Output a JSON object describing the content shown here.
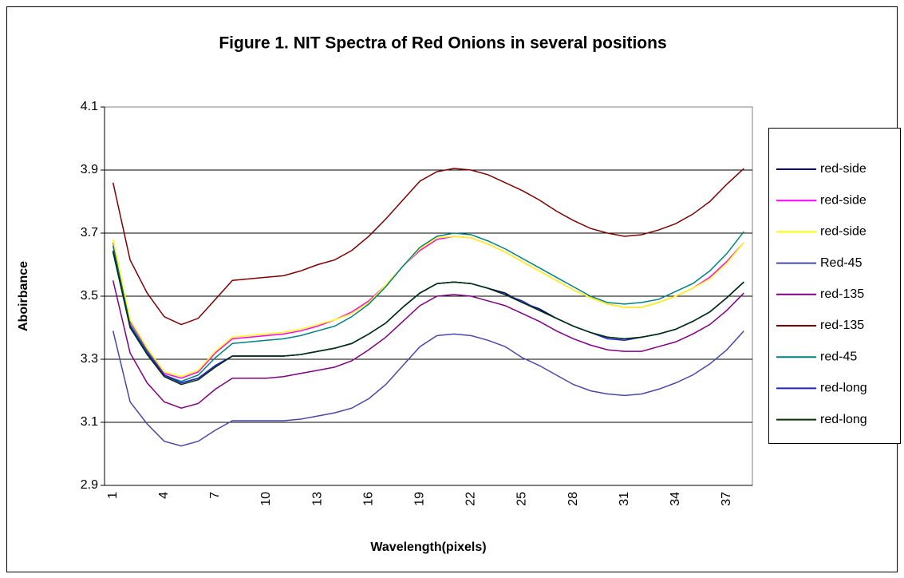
{
  "chart_data": {
    "type": "line",
    "title": "Figure 1. NIT Spectra of Red Onions in several positions",
    "xlabel": "Wavelength(pixels)",
    "ylabel": "Aboirbance",
    "categories": [
      1,
      null,
      null,
      4,
      null,
      null,
      7,
      null,
      null,
      10,
      null,
      null,
      13,
      null,
      null,
      16,
      null,
      null,
      19,
      null,
      null,
      22,
      null,
      null,
      25,
      null,
      null,
      28,
      null,
      null,
      31,
      null,
      null,
      34,
      null,
      null,
      37,
      null
    ],
    "ylim": [
      2.9,
      4.1
    ],
    "yticks": [
      {
        "value": 2.9,
        "label": "2.9"
      },
      {
        "value": 3.1,
        "label": "3.1"
      },
      {
        "value": 3.3,
        "label": "3.3"
      },
      {
        "value": 3.5,
        "label": "3.5"
      },
      {
        "value": 3.7,
        "label": "3.7"
      },
      {
        "value": 3.9,
        "label": "3.9"
      },
      {
        "value": 4.1,
        "label": "4.1"
      }
    ],
    "grid": true,
    "legend": "right",
    "series": [
      {
        "name": "red-side",
        "color": "#000080",
        "values": [
          3.64,
          3.41,
          3.32,
          3.25,
          3.225,
          3.24,
          3.28,
          3.31,
          3.31,
          3.31,
          3.31,
          3.315,
          3.325,
          3.335,
          3.35,
          3.38,
          3.415,
          3.465,
          3.51,
          3.54,
          3.545,
          3.54,
          3.525,
          3.51,
          3.48,
          3.46,
          3.43,
          3.405,
          3.385,
          3.37,
          3.365,
          3.37,
          3.38,
          3.395,
          3.42,
          3.45,
          3.495,
          3.545
        ]
      },
      {
        "name": "red-side",
        "color": "#ff00ff",
        "values": [
          3.67,
          3.42,
          3.33,
          3.255,
          3.24,
          3.26,
          3.32,
          3.365,
          3.37,
          3.375,
          3.38,
          3.39,
          3.405,
          3.425,
          3.45,
          3.485,
          3.535,
          3.595,
          3.645,
          3.68,
          3.69,
          3.685,
          3.665,
          3.64,
          3.61,
          3.58,
          3.55,
          3.52,
          3.495,
          3.475,
          3.465,
          3.465,
          3.48,
          3.5,
          3.525,
          3.56,
          3.61,
          3.67
        ]
      },
      {
        "name": "red-side",
        "color": "#ffff00",
        "values": [
          3.68,
          3.425,
          3.335,
          3.26,
          3.245,
          3.265,
          3.325,
          3.37,
          3.375,
          3.38,
          3.385,
          3.395,
          3.41,
          3.425,
          3.445,
          3.48,
          3.535,
          3.595,
          3.65,
          3.685,
          3.69,
          3.685,
          3.665,
          3.64,
          3.61,
          3.58,
          3.55,
          3.52,
          3.495,
          3.475,
          3.465,
          3.465,
          3.48,
          3.5,
          3.525,
          3.555,
          3.605,
          3.67
        ]
      },
      {
        "name": "Red-45",
        "color": "#4848a8",
        "values": [
          3.39,
          3.165,
          3.095,
          3.04,
          3.025,
          3.04,
          3.075,
          3.105,
          3.105,
          3.105,
          3.105,
          3.11,
          3.12,
          3.13,
          3.145,
          3.175,
          3.22,
          3.28,
          3.34,
          3.375,
          3.38,
          3.375,
          3.36,
          3.34,
          3.305,
          3.28,
          3.25,
          3.22,
          3.2,
          3.19,
          3.185,
          3.19,
          3.205,
          3.225,
          3.25,
          3.285,
          3.33,
          3.39
        ]
      },
      {
        "name": "red-135",
        "color": "#800080",
        "values": [
          3.55,
          3.32,
          3.225,
          3.165,
          3.145,
          3.16,
          3.205,
          3.24,
          3.24,
          3.24,
          3.245,
          3.255,
          3.265,
          3.275,
          3.295,
          3.33,
          3.37,
          3.42,
          3.47,
          3.5,
          3.505,
          3.5,
          3.485,
          3.47,
          3.445,
          3.42,
          3.39,
          3.365,
          3.345,
          3.33,
          3.325,
          3.325,
          3.34,
          3.355,
          3.38,
          3.41,
          3.455,
          3.51
        ]
      },
      {
        "name": "red-135",
        "color": "#800000",
        "values": [
          3.86,
          3.615,
          3.51,
          3.435,
          3.41,
          3.43,
          3.49,
          3.55,
          3.555,
          3.56,
          3.565,
          3.58,
          3.6,
          3.615,
          3.645,
          3.69,
          3.745,
          3.805,
          3.865,
          3.895,
          3.905,
          3.9,
          3.885,
          3.86,
          3.835,
          3.805,
          3.77,
          3.74,
          3.715,
          3.7,
          3.69,
          3.695,
          3.71,
          3.73,
          3.76,
          3.8,
          3.855,
          3.905
        ]
      },
      {
        "name": "red-45",
        "color": "#008080",
        "values": [
          3.66,
          3.41,
          3.325,
          3.25,
          3.23,
          3.25,
          3.305,
          3.35,
          3.355,
          3.36,
          3.365,
          3.375,
          3.39,
          3.405,
          3.435,
          3.475,
          3.53,
          3.595,
          3.655,
          3.69,
          3.7,
          3.695,
          3.675,
          3.65,
          3.62,
          3.59,
          3.56,
          3.53,
          3.5,
          3.48,
          3.475,
          3.48,
          3.49,
          3.515,
          3.54,
          3.58,
          3.635,
          3.705
        ]
      },
      {
        "name": "red-long",
        "color": "#2020d0",
        "values": [
          3.645,
          3.405,
          3.32,
          3.25,
          3.225,
          3.24,
          3.28,
          3.31,
          3.31,
          3.31,
          3.31,
          3.315,
          3.325,
          3.335,
          3.35,
          3.38,
          3.415,
          3.465,
          3.51,
          3.54,
          3.545,
          3.54,
          3.525,
          3.505,
          3.485,
          3.455,
          3.43,
          3.405,
          3.385,
          3.365,
          3.36,
          3.37,
          3.38,
          3.395,
          3.42,
          3.45,
          3.495,
          3.545
        ]
      },
      {
        "name": "red-long",
        "color": "#003300",
        "values": [
          3.64,
          3.4,
          3.315,
          3.245,
          3.22,
          3.235,
          3.275,
          3.31,
          3.31,
          3.31,
          3.31,
          3.315,
          3.325,
          3.335,
          3.35,
          3.38,
          3.415,
          3.465,
          3.51,
          3.54,
          3.545,
          3.54,
          3.525,
          3.505,
          3.48,
          3.455,
          3.43,
          3.405,
          3.385,
          3.37,
          3.365,
          3.37,
          3.38,
          3.395,
          3.42,
          3.45,
          3.495,
          3.545
        ]
      }
    ]
  }
}
